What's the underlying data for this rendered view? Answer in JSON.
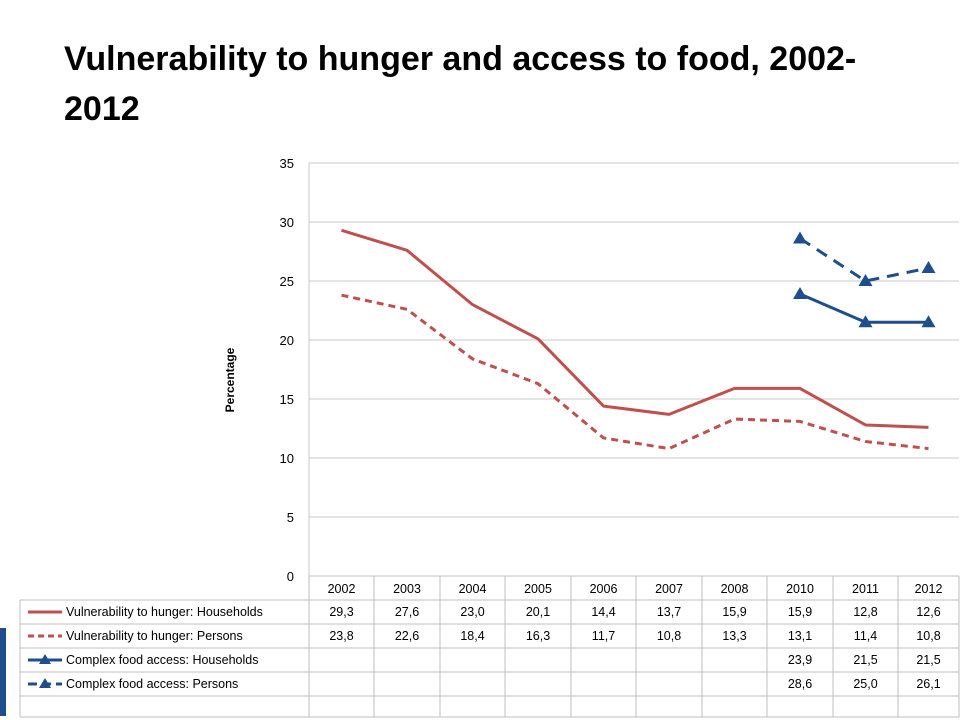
{
  "slide": {
    "title": "Vulnerability to hunger and access to food, 2002-2012"
  },
  "chart_data": {
    "type": "line",
    "title": "Vulnerability to hunger and access to food, 2002-2012",
    "ylabel": "Percentage",
    "xlabel": "",
    "ylim": [
      0,
      35
    ],
    "yticks": [
      0,
      5,
      10,
      15,
      20,
      25,
      30,
      35
    ],
    "grid": true,
    "legend_placement": "data-table",
    "categories": [
      "2002",
      "2003",
      "2004",
      "2005",
      "2006",
      "2007",
      "2008",
      "2010",
      "2011",
      "2012"
    ],
    "series": [
      {
        "name": "Vulnerability to hunger:  Households",
        "color": "#c0504d",
        "dash": "solid",
        "marker": "none",
        "values": [
          29.3,
          27.6,
          23.0,
          20.1,
          14.4,
          13.7,
          15.9,
          15.9,
          12.8,
          12.6
        ],
        "labels": [
          "29,3",
          "27,6",
          "23,0",
          "20,1",
          "14,4",
          "13,7",
          "15,9",
          "15,9",
          "12,8",
          "12,6"
        ]
      },
      {
        "name": "Vulnerability to hunger:  Persons",
        "color": "#c0504d",
        "dash": "dashed",
        "marker": "none",
        "values": [
          23.8,
          22.6,
          18.4,
          16.3,
          11.7,
          10.8,
          13.3,
          13.1,
          11.4,
          10.8
        ],
        "labels": [
          "23,8",
          "22,6",
          "18,4",
          "16,3",
          "11,7",
          "10,8",
          "13,3",
          "13,1",
          "11,4",
          "10,8"
        ]
      },
      {
        "name": "Complex food access:  Households",
        "color": "#1f4e8c",
        "dash": "solid",
        "marker": "triangle",
        "values": [
          null,
          null,
          null,
          null,
          null,
          null,
          null,
          23.9,
          21.5,
          21.5
        ],
        "labels": [
          "",
          "",
          "",
          "",
          "",
          "",
          "",
          "23,9",
          "21,5",
          "21,5"
        ]
      },
      {
        "name": "Complex food access:  Persons",
        "color": "#1f4e8c",
        "dash": "dashed",
        "marker": "triangle",
        "values": [
          null,
          null,
          null,
          null,
          null,
          null,
          null,
          28.6,
          25.0,
          26.1
        ],
        "labels": [
          "",
          "",
          "",
          "",
          "",
          "",
          "",
          "28,6",
          "25,0",
          "26,1"
        ]
      }
    ]
  }
}
